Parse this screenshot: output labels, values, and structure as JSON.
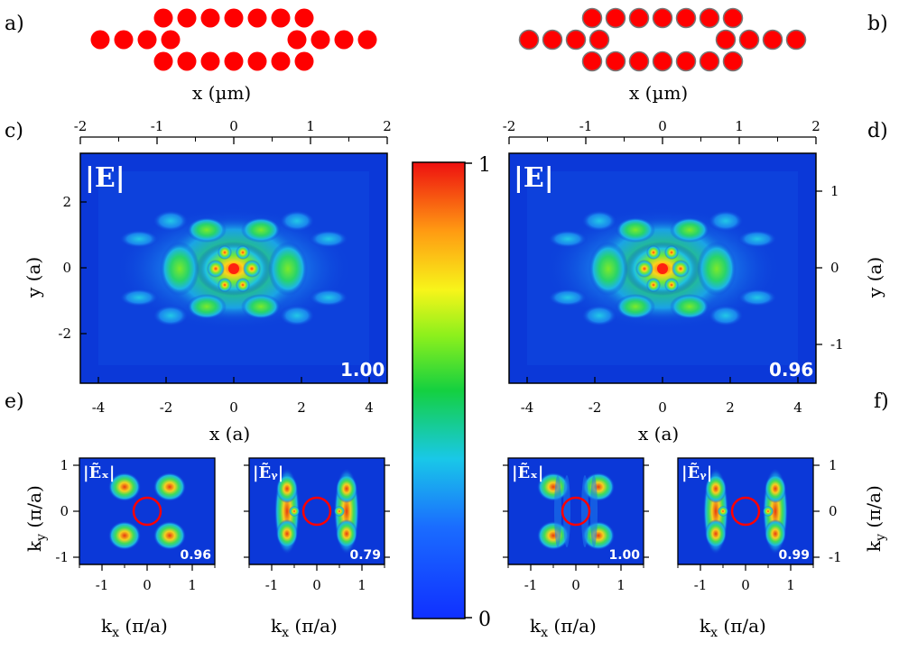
{
  "panel_labels": [
    "a)",
    "b)",
    "c)",
    "d)",
    "e)",
    "f)"
  ],
  "top_xlabel": "x (µm)",
  "top_ticks": [
    "-2",
    "-1",
    "0",
    "1",
    "2"
  ],
  "main_field_label": "|E|",
  "main_values": [
    "1.00",
    "0.96"
  ],
  "main_ylabel": "y (a)",
  "main_yticks_left": [
    "2",
    "0",
    "-2"
  ],
  "main_yticks_right": [
    "1",
    "0",
    "-1"
  ],
  "main_xlabel": "x (a)",
  "main_xticks": [
    "-4",
    "-2",
    "0",
    "2",
    "4"
  ],
  "colorbar_max": "1",
  "colorbar_min": "0",
  "k_field_labels": [
    "|Ẽₓ|",
    "|Ẽᵧ|"
  ],
  "k_values": [
    "0.96",
    "0.79",
    "1.00",
    "0.99"
  ],
  "k_xticks": [
    "-1",
    "0",
    "1"
  ],
  "k_yticks": [
    "1",
    "0",
    "-1"
  ],
  "k_ylabel": "k_y (π/a)",
  "k_xlabel": "k_x (π/a)",
  "colors": {
    "dot_red": "#ff0000",
    "map_bg": "#0b38d8",
    "ring": "#ff0000"
  }
}
